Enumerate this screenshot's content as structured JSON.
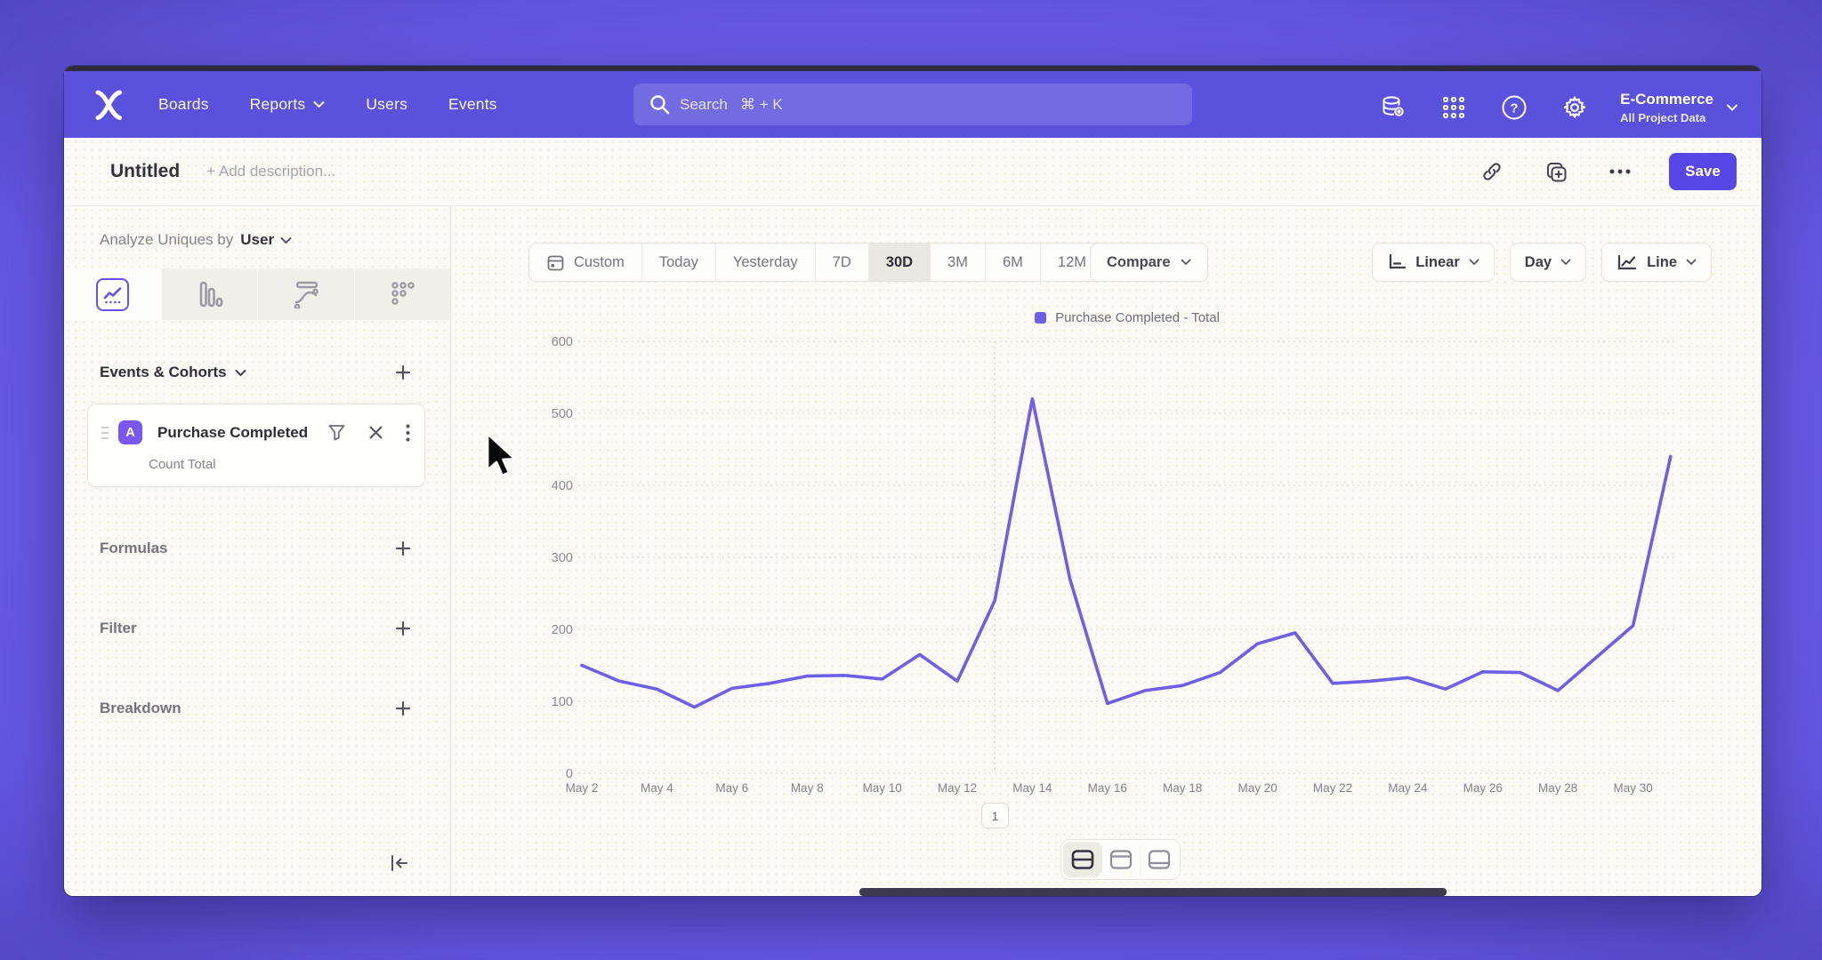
{
  "colors": {
    "nav_bg": "#5a52dc",
    "accent": "#5747e6",
    "line": "#6e5fe6",
    "badge": "#7a56f4",
    "window_bg": "#fbfaf6"
  },
  "nav": {
    "items": [
      {
        "label": "Boards",
        "has_dropdown": false
      },
      {
        "label": "Reports",
        "has_dropdown": true
      },
      {
        "label": "Users",
        "has_dropdown": false
      },
      {
        "label": "Events",
        "has_dropdown": false
      }
    ],
    "search": {
      "placeholder": "Search   ⌘ + K"
    },
    "project": {
      "name": "E-Commerce",
      "subtitle": "All Project Data"
    }
  },
  "header": {
    "title": "Untitled",
    "description_placeholder": "+ Add description...",
    "save_label": "Save"
  },
  "sidebar": {
    "analyze_prefix": "Analyze Uniques by",
    "analyze_value": "User",
    "events_header": "Events & Cohorts",
    "event_card": {
      "badge": "A",
      "title": "Purchase Completed",
      "subtitle": "Count Total"
    },
    "sections": [
      {
        "label": "Formulas"
      },
      {
        "label": "Filter"
      },
      {
        "label": "Breakdown"
      }
    ]
  },
  "chart_toolbar": {
    "ranges": [
      "Custom",
      "Today",
      "Yesterday",
      "7D",
      "30D",
      "3M",
      "6M",
      "12M"
    ],
    "active_range": "30D",
    "compare_label": "Compare",
    "scale_label": "Linear",
    "interval_label": "Day",
    "chart_type_label": "Line"
  },
  "chart_data": {
    "type": "line",
    "title": "",
    "legend_position": "top",
    "grid": true,
    "ylim": [
      0,
      600
    ],
    "y_ticks": [
      0,
      100,
      200,
      300,
      400,
      500,
      600
    ],
    "x_tick_labels": [
      "May 2",
      "May 4",
      "May 6",
      "May 8",
      "May 10",
      "May 12",
      "May 14",
      "May 16",
      "May 18",
      "May 20",
      "May 22",
      "May 24",
      "May 26",
      "May 28",
      "May 30"
    ],
    "series": [
      {
        "name": "Purchase Completed - Total",
        "color": "#6e5fe6",
        "x": [
          "May 2",
          "May 3",
          "May 4",
          "May 5",
          "May 6",
          "May 7",
          "May 8",
          "May 9",
          "May 10",
          "May 11",
          "May 12",
          "May 13",
          "May 14",
          "May 15",
          "May 16",
          "May 17",
          "May 18",
          "May 19",
          "May 20",
          "May 21",
          "May 22",
          "May 23",
          "May 24",
          "May 25",
          "May 26",
          "May 27",
          "May 28",
          "May 29",
          "May 30",
          "May 31"
        ],
        "values": [
          150,
          128,
          117,
          92,
          118,
          125,
          135,
          136,
          131,
          165,
          128,
          240,
          520,
          270,
          97,
          115,
          122,
          140,
          180,
          195,
          125,
          128,
          133,
          117,
          141,
          140,
          115,
          160,
          205,
          440
        ]
      }
    ],
    "annotation": {
      "label": "1",
      "x": "May 13"
    }
  },
  "footer": {
    "page": "1",
    "layout_options": [
      "split-horizontal",
      "top-panel",
      "bottom-panel"
    ],
    "active_layout": "split-horizontal"
  }
}
